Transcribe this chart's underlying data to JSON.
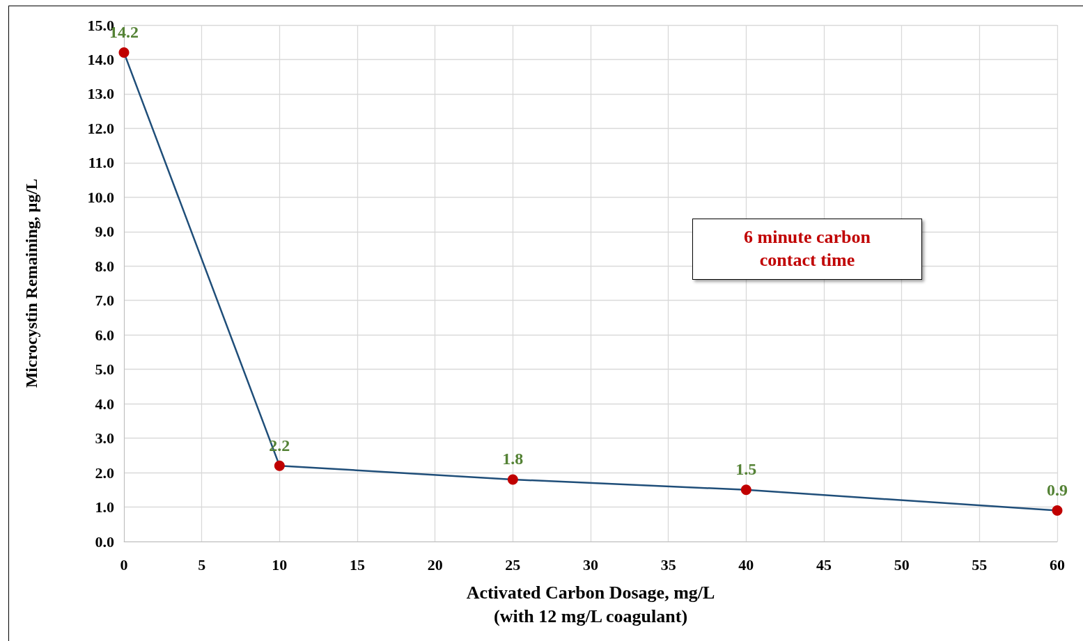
{
  "chart_data": {
    "type": "line",
    "xlabel": "Activated Carbon Dosage, mg/L\n(with 12 mg/L coagulant)",
    "ylabel": "Microcystin Remaining, µg/L",
    "x": [
      0,
      10,
      25,
      40,
      60
    ],
    "series": [
      {
        "color": "#1f4e79",
        "colors": [
          "#c00000",
          "#c00000",
          "#c00000",
          "#c00000",
          "#c00000"
        ],
        "values": [
          14.2,
          2.2,
          1.8,
          1.5,
          0.9
        ]
      }
    ],
    "data_labels": true,
    "marker": "circle",
    "line_style": "solid",
    "grid": true,
    "xlim": [
      0,
      60
    ],
    "xticks": [
      0,
      5,
      10,
      15,
      20,
      25,
      30,
      35,
      40,
      45,
      50,
      55,
      60
    ],
    "ylim": [
      0,
      15
    ],
    "yticks": [
      {
        "value": 0,
        "label": "0.0"
      },
      {
        "value": 1,
        "label": "1.0"
      },
      {
        "value": 2,
        "label": "2.0"
      },
      {
        "value": 3,
        "label": "3.0"
      },
      {
        "value": 4,
        "label": "4.0"
      },
      {
        "value": 5,
        "label": "5.0"
      },
      {
        "value": 6,
        "label": "6.0"
      },
      {
        "value": 7,
        "label": "7.0"
      },
      {
        "value": 8,
        "label": "8.0"
      },
      {
        "value": 9,
        "label": "9.0"
      },
      {
        "value": 10,
        "label": "10.0"
      },
      {
        "value": 11,
        "label": "11.0"
      },
      {
        "value": 12,
        "label": "12.0"
      },
      {
        "value": 13,
        "label": "13.0"
      },
      {
        "value": 14,
        "label": "14.0"
      },
      {
        "value": 15,
        "label": "15.0"
      }
    ],
    "annotations": [
      "6 minute carbon\ncontact time"
    ]
  }
}
